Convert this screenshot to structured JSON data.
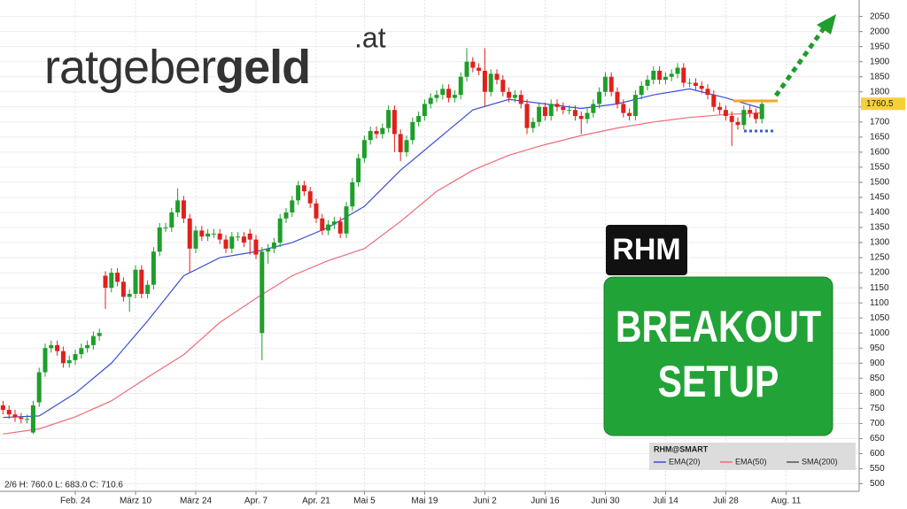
{
  "chart_data": {
    "type": "candlestick",
    "logo": {
      "part1": "ratgeber",
      "part2": "geld",
      "part3": ".at"
    },
    "badge": "RHM",
    "headline": [
      "BREAKOUT",
      "SETUP"
    ],
    "info": "2/6 H: 760.0 L: 683.0 C: 710.6",
    "legend_title": "RHM@SMART",
    "up_color": "#1e9e2a",
    "down_color": "#e0201b",
    "grid": true,
    "ylim": [
      475,
      2090
    ],
    "yticks": [
      500,
      550,
      600,
      650,
      700,
      750,
      800,
      850,
      900,
      950,
      1000,
      1050,
      1100,
      1150,
      1200,
      1250,
      1300,
      1350,
      1400,
      1450,
      1500,
      1550,
      1600,
      1650,
      1700,
      1750,
      1800,
      1850,
      1900,
      1950,
      2000,
      2050
    ],
    "last_price": 1760.5,
    "levels": [
      {
        "value": 1770,
        "color": "#f5a623"
      },
      {
        "value": 1670,
        "color": "#3a5bd9"
      }
    ],
    "categories": [
      null,
      null,
      null,
      null,
      null,
      null,
      null,
      null,
      null,
      null,
      null,
      null,
      "Feb. 24",
      null,
      null,
      null,
      null,
      null,
      null,
      null,
      null,
      null,
      "März 10",
      null,
      null,
      null,
      null,
      null,
      null,
      null,
      null,
      null,
      "März 24",
      null,
      null,
      null,
      null,
      null,
      null,
      null,
      null,
      null,
      "Apr. 7",
      null,
      null,
      null,
      null,
      null,
      null,
      null,
      null,
      null,
      "Apr. 21",
      null,
      null,
      null,
      null,
      null,
      null,
      null,
      "Mai 5",
      null,
      null,
      null,
      null,
      null,
      null,
      null,
      null,
      null,
      "Mai 19",
      null,
      null,
      null,
      null,
      null,
      null,
      null,
      null,
      null,
      "Juni 2",
      null,
      null,
      null,
      null,
      null,
      null,
      null,
      null,
      null,
      "Juni 16",
      null,
      null,
      null,
      null,
      null,
      null,
      null,
      null,
      null,
      "Juni 30",
      null,
      null,
      null,
      null,
      null,
      null,
      null,
      null,
      null,
      "Juli 14",
      null,
      null,
      null,
      null,
      null,
      null,
      null,
      null,
      null,
      "Juli 28",
      null,
      null,
      null,
      null,
      null,
      null,
      null,
      null,
      null,
      "Aug. 11",
      null
    ],
    "open": [
      760,
      745,
      730,
      720,
      715,
      670,
      770,
      870,
      950,
      960,
      940,
      900,
      910,
      930,
      950,
      960,
      990,
      1190,
      1150,
      1200,
      1170,
      1120,
      1130,
      1210,
      1130,
      1160,
      1270,
      1350,
      1350,
      1400,
      1440,
      1380,
      1280,
      1340,
      1320,
      1330,
      1330,
      1310,
      1280,
      1320,
      1320,
      1330,
      1310,
      1000,
      1270,
      1280,
      1300,
      1380,
      1400,
      1440,
      1490,
      1470,
      1430,
      1380,
      1340,
      1360,
      1370,
      1330,
      1420,
      1500,
      1580,
      1640,
      1670,
      1660,
      1680,
      1740,
      1660,
      1600,
      1640,
      1700,
      1720,
      1760,
      1780,
      1790,
      1810,
      1780,
      1790,
      1850,
      1900,
      1880,
      1870,
      1800,
      1860,
      1840,
      1800,
      1780,
      1790,
      1760,
      1680,
      1700,
      1750,
      1720,
      1760,
      1750,
      1740,
      1740,
      1720,
      1710,
      1730,
      1760,
      1800,
      1850,
      1800,
      1760,
      1730,
      1720,
      1790,
      1820,
      1840,
      1870,
      1840,
      1850,
      1860,
      1880,
      1830,
      1830,
      1820,
      1810,
      1790,
      1750,
      1740,
      1720,
      1700,
      1690,
      1740,
      1730,
      1710,
      null,
      null,
      null,
      null,
      null
    ],
    "high": [
      775,
      760,
      745,
      735,
      730,
      775,
      885,
      965,
      975,
      975,
      955,
      925,
      945,
      965,
      975,
      1005,
      1015,
      1205,
      1215,
      1215,
      1185,
      1145,
      1225,
      1225,
      1175,
      1285,
      1365,
      1365,
      1415,
      1480,
      1455,
      1395,
      1355,
      1355,
      1345,
      1345,
      1345,
      1325,
      1335,
      1335,
      1335,
      1345,
      1325,
      1285,
      1295,
      1315,
      1395,
      1415,
      1455,
      1505,
      1505,
      1485,
      1445,
      1395,
      1375,
      1385,
      1385,
      1435,
      1515,
      1595,
      1655,
      1685,
      1685,
      1695,
      1755,
      1755,
      1675,
      1655,
      1715,
      1735,
      1775,
      1795,
      1805,
      1825,
      1825,
      1805,
      1865,
      1945,
      1915,
      1895,
      1945,
      1875,
      1875,
      1855,
      1815,
      1805,
      1805,
      1775,
      1715,
      1765,
      1765,
      1775,
      1775,
      1765,
      1755,
      1755,
      1735,
      1745,
      1775,
      1815,
      1865,
      1865,
      1815,
      1775,
      1745,
      1805,
      1835,
      1855,
      1885,
      1885,
      1865,
      1875,
      1895,
      1895,
      1845,
      1845,
      1835,
      1825,
      1805,
      1765,
      1755,
      1735,
      1715,
      1755,
      1755,
      1745,
      1775,
      null,
      null,
      null,
      null,
      null
    ],
    "low": [
      730,
      715,
      705,
      700,
      700,
      665,
      755,
      855,
      935,
      925,
      885,
      885,
      895,
      915,
      935,
      945,
      975,
      1080,
      1135,
      1155,
      1105,
      1070,
      1115,
      1115,
      1115,
      1145,
      1255,
      1335,
      1335,
      1385,
      1365,
      1200,
      1265,
      1305,
      1305,
      1315,
      1295,
      1265,
      1265,
      1305,
      1285,
      1260,
      1245,
      910,
      1230,
      1265,
      1285,
      1365,
      1385,
      1425,
      1455,
      1415,
      1365,
      1325,
      1325,
      1345,
      1315,
      1315,
      1405,
      1485,
      1565,
      1625,
      1645,
      1645,
      1665,
      1600,
      1570,
      1585,
      1625,
      1685,
      1705,
      1745,
      1765,
      1775,
      1765,
      1765,
      1775,
      1835,
      1865,
      1855,
      1750,
      1785,
      1825,
      1785,
      1765,
      1765,
      1745,
      1660,
      1665,
      1685,
      1705,
      1705,
      1735,
      1725,
      1725,
      1705,
      1660,
      1695,
      1715,
      1745,
      1785,
      1785,
      1745,
      1715,
      1705,
      1705,
      1775,
      1805,
      1825,
      1825,
      1825,
      1835,
      1845,
      1815,
      1815,
      1805,
      1795,
      1775,
      1735,
      1725,
      1705,
      1620,
      1675,
      1675,
      1715,
      1695,
      1695,
      null,
      null,
      null,
      null,
      null
    ],
    "close": [
      745,
      730,
      720,
      715,
      715,
      760,
      870,
      950,
      960,
      940,
      900,
      910,
      930,
      950,
      960,
      990,
      1000,
      1150,
      1200,
      1170,
      1120,
      1130,
      1210,
      1130,
      1160,
      1270,
      1350,
      1350,
      1400,
      1440,
      1380,
      1280,
      1340,
      1320,
      1330,
      1330,
      1310,
      1280,
      1320,
      1320,
      1300,
      1310,
      1260,
      1270,
      1280,
      1300,
      1380,
      1400,
      1440,
      1490,
      1470,
      1430,
      1380,
      1340,
      1360,
      1370,
      1330,
      1420,
      1500,
      1580,
      1640,
      1670,
      1660,
      1680,
      1740,
      1660,
      1600,
      1640,
      1700,
      1720,
      1760,
      1780,
      1790,
      1810,
      1780,
      1790,
      1850,
      1900,
      1880,
      1870,
      1800,
      1860,
      1840,
      1800,
      1780,
      1790,
      1760,
      1680,
      1700,
      1750,
      1720,
      1760,
      1750,
      1740,
      1740,
      1720,
      1710,
      1730,
      1760,
      1800,
      1850,
      1800,
      1760,
      1730,
      1720,
      1790,
      1820,
      1840,
      1870,
      1840,
      1850,
      1860,
      1880,
      1830,
      1830,
      1820,
      1810,
      1790,
      1750,
      1740,
      1720,
      1700,
      1690,
      1740,
      1730,
      1710,
      1760,
      null,
      null,
      null,
      null,
      null
    ],
    "series": [
      {
        "name": "EMA(20)",
        "color": "#3a4fd6",
        "x": [
          0,
          6,
          12,
          18,
          24,
          30,
          36,
          42,
          48,
          54,
          60,
          66,
          72,
          78,
          84,
          90,
          96,
          102,
          108,
          114,
          120,
          126
        ],
        "values": [
          720,
          725,
          800,
          900,
          1040,
          1190,
          1250,
          1270,
          1300,
          1350,
          1420,
          1540,
          1640,
          1740,
          1775,
          1760,
          1745,
          1760,
          1790,
          1810,
          1780,
          1745
        ]
      },
      {
        "name": "EMA(50)",
        "color": "#f06a78",
        "x": [
          0,
          6,
          12,
          18,
          24,
          30,
          36,
          42,
          48,
          54,
          60,
          66,
          72,
          78,
          84,
          90,
          96,
          102,
          108,
          114,
          120,
          126
        ],
        "values": [
          665,
          682,
          722,
          775,
          853,
          928,
          1035,
          1115,
          1190,
          1240,
          1280,
          1370,
          1470,
          1540,
          1590,
          1625,
          1655,
          1680,
          1700,
          1715,
          1725,
          1730
        ]
      },
      {
        "name": "SMA(200)",
        "color": "#555555",
        "x": [],
        "values": []
      }
    ]
  }
}
